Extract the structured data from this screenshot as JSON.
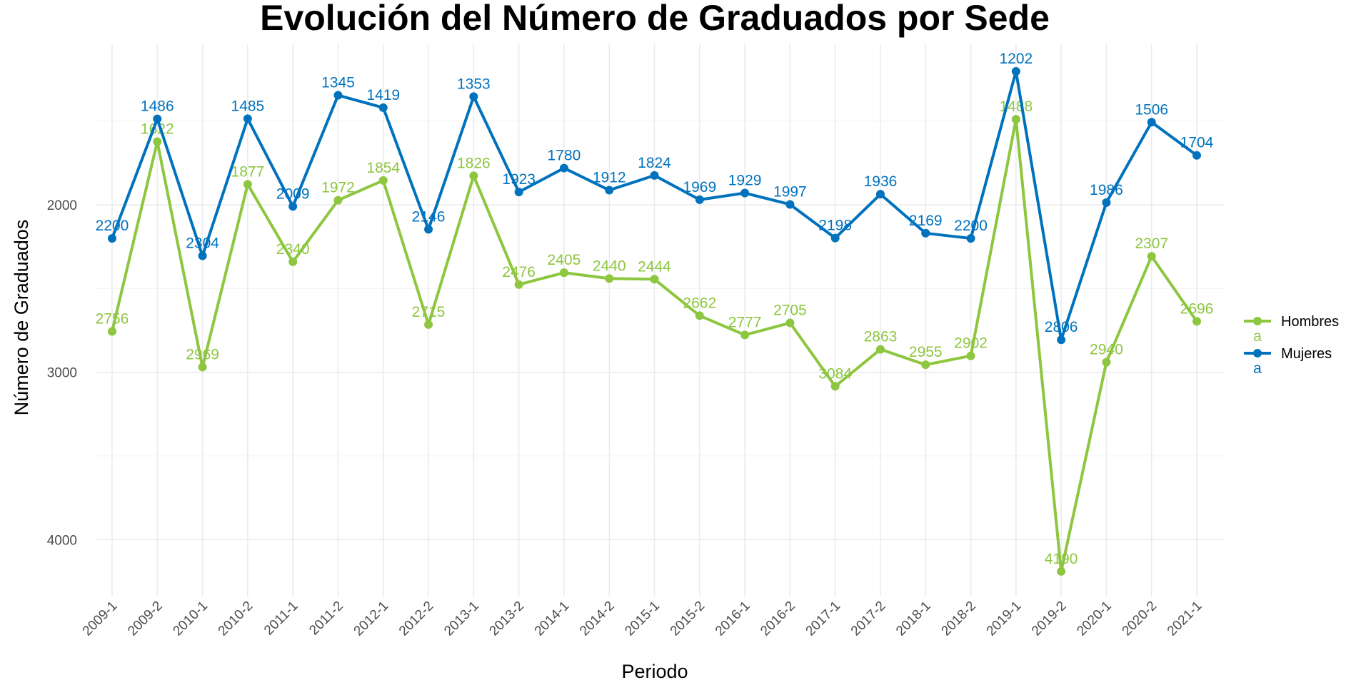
{
  "chart_data": {
    "type": "line",
    "title": "Evolución del Número de Graduados por Sede",
    "xlabel": "Periodo",
    "ylabel": "Número de Graduados",
    "y_reversed": true,
    "ylim": [
      1040,
      4340
    ],
    "yticks": [
      2000,
      3000,
      4000
    ],
    "yminor": [
      1500,
      2500,
      3500
    ],
    "grid": true,
    "legend_position": "right",
    "categories": [
      "2009-1",
      "2009-2",
      "2010-1",
      "2010-2",
      "2011-1",
      "2011-2",
      "2012-1",
      "2012-2",
      "2013-1",
      "2013-2",
      "2014-1",
      "2014-2",
      "2015-1",
      "2015-2",
      "2016-1",
      "2016-2",
      "2017-1",
      "2017-2",
      "2018-1",
      "2018-2",
      "2019-1",
      "2019-2",
      "2020-1",
      "2020-2",
      "2021-1"
    ],
    "series": [
      {
        "name": "Hombres",
        "legend_key_text": "a",
        "color": "#8dc63f",
        "values": [
          2756,
          1622,
          2969,
          1877,
          2340,
          1972,
          1854,
          2715,
          1826,
          2476,
          2405,
          2440,
          2444,
          2662,
          2777,
          2705,
          3084,
          2863,
          2955,
          2902,
          1488,
          4190,
          2940,
          2307,
          2696
        ]
      },
      {
        "name": "Mujeres",
        "legend_key_text": "a",
        "color": "#0072bd",
        "values": [
          2200,
          1486,
          2304,
          1485,
          2009,
          1345,
          1419,
          2146,
          1353,
          1923,
          1780,
          1912,
          1824,
          1969,
          1929,
          1997,
          2198,
          1936,
          2169,
          2200,
          1202,
          2806,
          1986,
          1506,
          1704
        ]
      }
    ]
  }
}
